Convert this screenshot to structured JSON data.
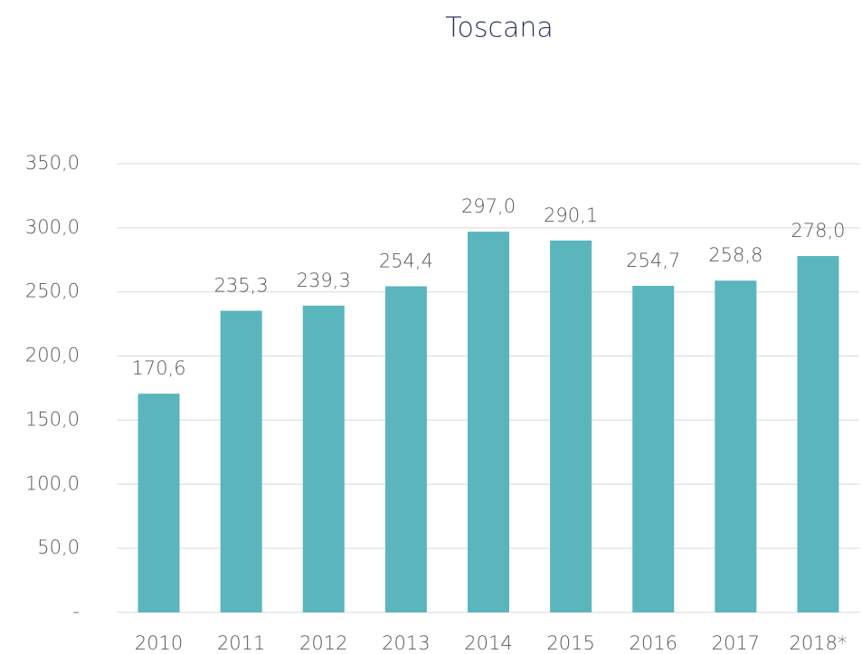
{
  "chart_data": {
    "type": "bar",
    "title": "Toscana",
    "categories": [
      "2010",
      "2011",
      "2012",
      "2013",
      "2014",
      "2015",
      "2016",
      "2017",
      "2018*"
    ],
    "values": [
      170.6,
      235.3,
      239.3,
      254.4,
      297.0,
      290.1,
      254.7,
      258.8,
      278.0
    ],
    "value_labels": [
      "170,6",
      "235,3",
      "239,3",
      "254,4",
      "297,0",
      "290,1",
      "254,7",
      "258,8",
      "278,0"
    ],
    "color": "#5ab5bd",
    "ylim": [
      0,
      350
    ],
    "yticks": [
      {
        "value": 0,
        "label": "-"
      },
      {
        "value": 50,
        "label": "50,0"
      },
      {
        "value": 100,
        "label": "100,0"
      },
      {
        "value": 150,
        "label": "150,0"
      },
      {
        "value": 200,
        "label": "200,0"
      },
      {
        "value": 250,
        "label": "250,0"
      },
      {
        "value": 300,
        "label": "300,0"
      },
      {
        "value": 350,
        "label": "350,0"
      }
    ],
    "grid": true
  }
}
